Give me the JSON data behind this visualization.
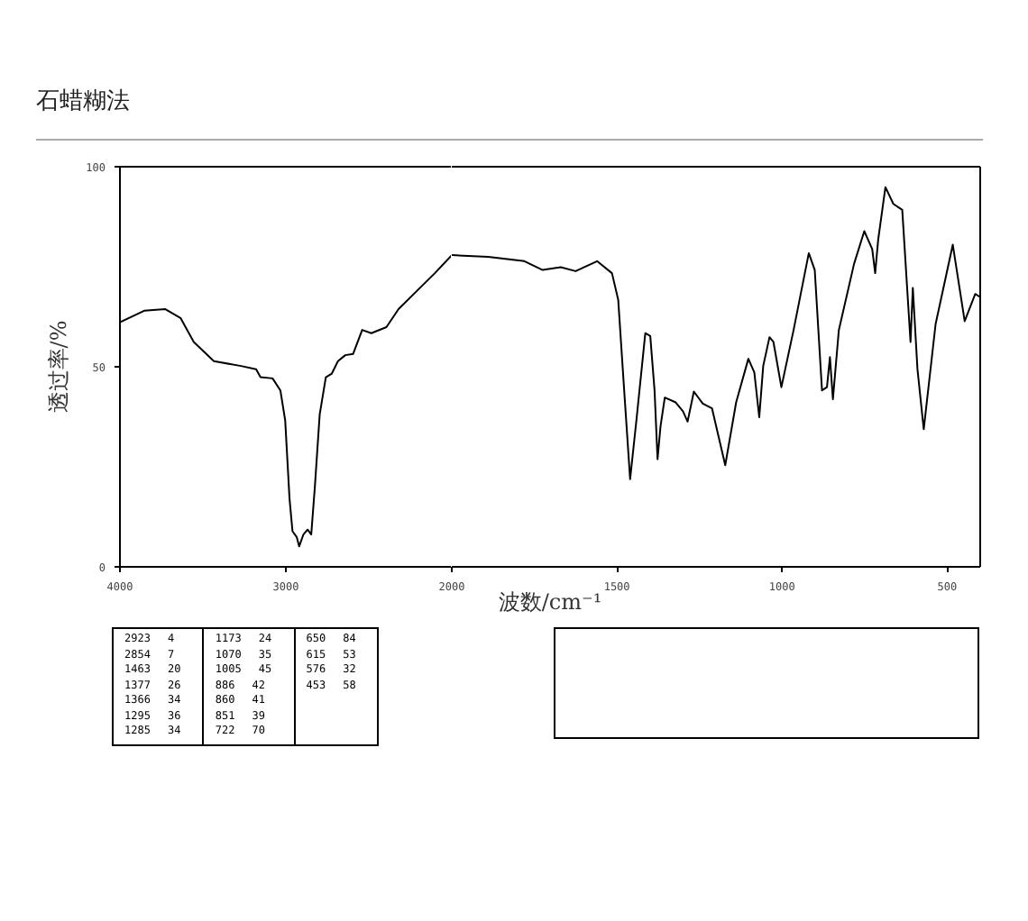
{
  "chart_data": [
    {
      "type": "line",
      "title": "石蜡糊法",
      "xlabel": "波数/cm⁻¹",
      "ylabel": "透过率/%",
      "color": "#000000",
      "annotations": [
        "2923 4",
        "2854 7",
        "1463 20",
        "1377 26",
        "1366 34",
        "1295 36",
        "1285 34",
        "1173 24",
        "1070 35",
        "1005 45",
        "886 42",
        "860 41",
        "851 39",
        "722 70",
        "650 84",
        "615 53",
        "576 32",
        "453 58"
      ],
      "x": [
        4000,
        3854,
        3726,
        3635,
        3555,
        3434,
        3270,
        3179,
        3153,
        3080,
        3033,
        3004,
        2978,
        2960,
        2934,
        2920,
        2894,
        2869,
        2847,
        2825,
        2796,
        2759,
        2723,
        2686,
        2642,
        2595,
        2540,
        2485,
        2394,
        2321,
        2212,
        2102,
        2000
      ],
      "values": [
        61.1,
        64,
        64.4,
        62.2,
        56.2,
        51.4,
        50.2,
        49.4,
        47.4,
        47.1,
        44.1,
        36.6,
        17.1,
        8.9,
        7.4,
        5.1,
        8.1,
        9.3,
        8.1,
        20.1,
        38.1,
        47.4,
        48.3,
        51.4,
        52.9,
        53.2,
        59.2,
        58.4,
        59.9,
        64.4,
        68.9,
        73.4,
        77.9
      ],
      "xlim": [
        4000,
        2000
      ],
      "ylim": [
        0,
        100
      ],
      "xticks": [
        4000,
        3000
      ],
      "yticks": [
        0,
        50,
        100
      ]
    },
    {
      "type": "line",
      "color": "#000000",
      "tick_labels": "x",
      "x": [
        2000,
        1890,
        1780,
        1725,
        1670,
        1625,
        1560,
        1515,
        1496,
        1478,
        1460,
        1441,
        1414,
        1399,
        1386,
        1377,
        1368,
        1355,
        1322,
        1300,
        1286,
        1267,
        1240,
        1212,
        1172,
        1139,
        1102,
        1084,
        1069,
        1057,
        1038,
        1026,
        1002,
        965,
        919,
        901,
        879,
        864,
        855,
        846,
        828,
        782,
        751,
        727,
        718,
        709,
        687,
        663,
        636,
        611,
        604,
        590,
        571,
        535,
        483,
        447,
        415,
        400
      ],
      "values": [
        77.9,
        77.5,
        76.4,
        74.2,
        74.9,
        73.9,
        76.4,
        73.4,
        66.7,
        44.1,
        21.9,
        36.6,
        58.4,
        57.7,
        44.1,
        26.9,
        35.1,
        42.3,
        41.1,
        38.9,
        36.3,
        43.8,
        40.8,
        39.6,
        25.4,
        41.1,
        52,
        48.6,
        37.4,
        50.2,
        57.4,
        56.2,
        44.9,
        59.2,
        78.4,
        74.2,
        44.1,
        44.9,
        52.4,
        41.9,
        59.2,
        75.7,
        83.9,
        79.4,
        73.4,
        81.7,
        94.9,
        90.7,
        89.2,
        56.2,
        69.7,
        49.4,
        34.4,
        60.7,
        80.5,
        61.4,
        68.2,
        67.4
      ],
      "xlim": [
        2000,
        400
      ],
      "ylim": [
        0,
        100
      ],
      "xticks": [
        2000,
        1500,
        1000,
        500
      ]
    }
  ]
}
